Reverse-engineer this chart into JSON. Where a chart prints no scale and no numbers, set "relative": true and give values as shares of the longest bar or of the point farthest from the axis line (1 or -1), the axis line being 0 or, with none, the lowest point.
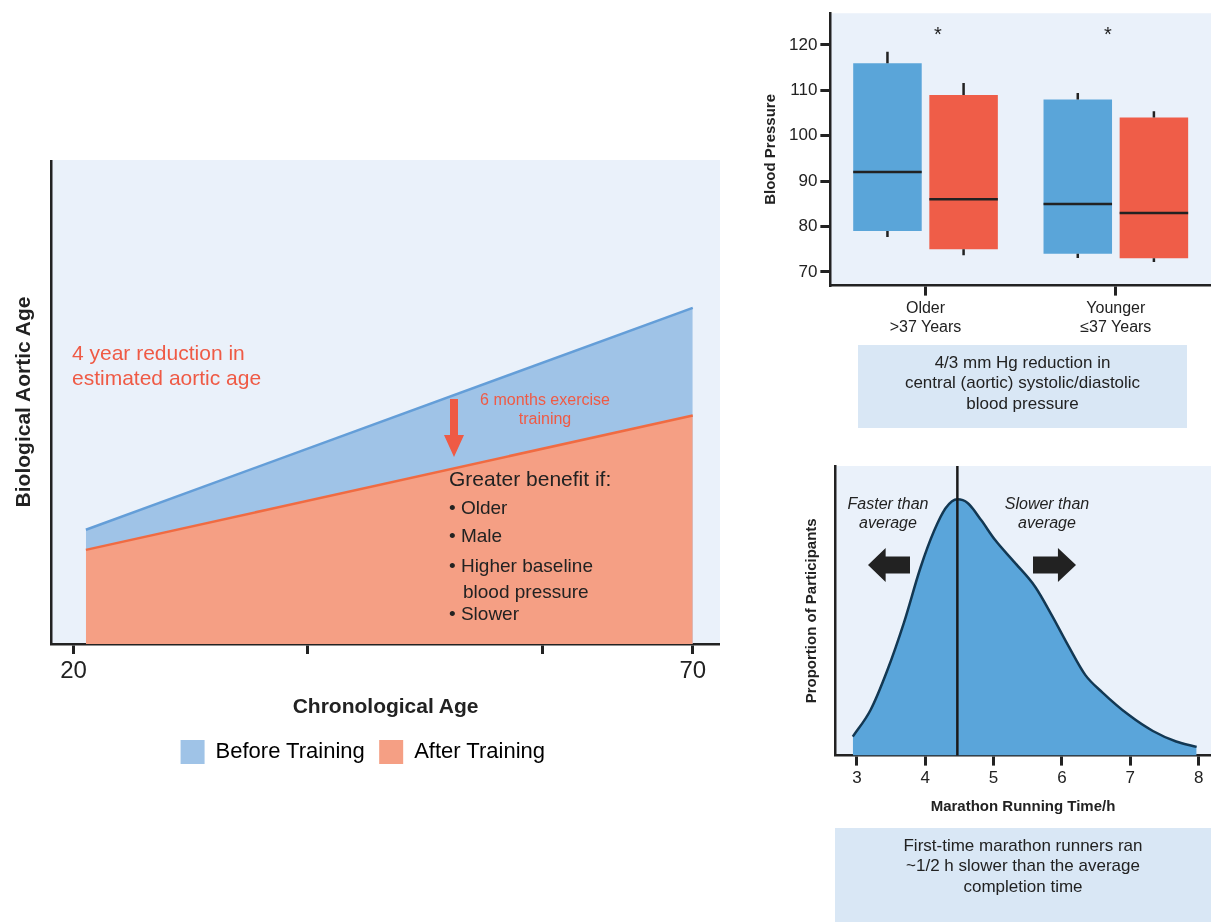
{
  "chart_data": [
    {
      "type": "area",
      "xlabel": "Chronological Age",
      "ylabel": "Biological Aortic Age",
      "relative": true,
      "x": [
        21,
        70
      ],
      "xlim": [
        18.2,
        72.2
      ],
      "xticks": [
        20,
        {
          "value": 38.9,
          "label": null
        },
        {
          "value": 57.9,
          "label": null
        },
        70
      ],
      "series": [
        {
          "name": "Before Training",
          "color": "#9fc3e7",
          "values": [
            0.34,
            1
          ]
        },
        {
          "name": "After Training",
          "color": "#f59f84",
          "values": [
            0.28,
            0.68
          ]
        }
      ],
      "legend": "bottom",
      "grid": false,
      "annotations": [
        "4 year reduction in\nestimated aortic age",
        "6 months exercise\ntraining",
        "Greater benefit if:",
        "• Older",
        "• Male",
        "• Higher baseline blood pressure",
        "• Slower"
      ]
    },
    {
      "type": "box",
      "ylabel": "Blood Pressure",
      "categories": [
        "Older\n>37 Years",
        "Younger\n≤37 Years"
      ],
      "ylim": [
        67,
        127
      ],
      "yticks": [
        70,
        80,
        90,
        100,
        110,
        120
      ],
      "series": [
        {
          "color": "#5aa5d9",
          "boxes": [
            {
              "low": 77.7,
              "q1": 79,
              "median": 92,
              "q3": 116,
              "high": 118.5
            },
            {
              "low": 73.1,
              "q1": 74,
              "median": 85,
              "q3": 108,
              "high": 109.4
            }
          ]
        },
        {
          "color": "#ef5d48",
          "boxes": [
            {
              "low": 73.7,
              "q1": 75,
              "median": 86,
              "q3": 109,
              "high": 111.6
            },
            {
              "low": 72.2,
              "q1": 73,
              "median": 83,
              "q3": 104,
              "high": 105.4
            }
          ]
        }
      ],
      "legend": false,
      "grid": false,
      "annotations": [
        "*",
        "*",
        "4/3 mm Hg reduction in\ncentral (aortic) systolic/diastolic\nblood pressure"
      ]
    },
    {
      "type": "area",
      "xlabel": "Marathon Running Time/h",
      "ylabel": "Proportion of Participants",
      "relative": true,
      "xlim": [
        2.68,
        8.18
      ],
      "xticks": [
        3,
        4,
        5,
        6,
        7,
        8
      ],
      "x": [
        2.94,
        3.2,
        3.44,
        3.69,
        3.93,
        4.13,
        4.3,
        4.47,
        4.62,
        4.82,
        5.02,
        5.31,
        5.61,
        5.85,
        6.1,
        6.34,
        6.59,
        6.98,
        7.33,
        7.67,
        7.97
      ],
      "series": [
        {
          "color": "#5aa5da",
          "values": [
            0.074,
            0.178,
            0.329,
            0.52,
            0.733,
            0.877,
            0.966,
            1,
            0.986,
            0.918,
            0.842,
            0.753,
            0.658,
            0.548,
            0.425,
            0.315,
            0.247,
            0.158,
            0.096,
            0.055,
            0.034
          ]
        }
      ],
      "ref_lines": [
        {
          "axis": "x",
          "value": 4.47,
          "color": "#1a1a1a"
        }
      ],
      "legend": false,
      "grid": false,
      "annotations": [
        "Faster than\naverage",
        "Slower than\naverage",
        "First-time marathon runners ran\n~1/2 h slower than the average\ncompletion time"
      ]
    }
  ]
}
